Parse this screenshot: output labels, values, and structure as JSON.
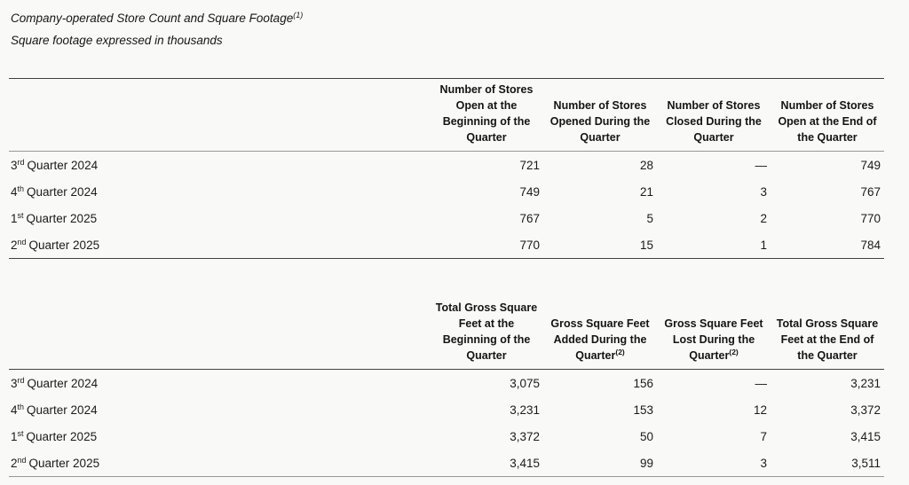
{
  "intro": {
    "title_text": "Company-operated Store Count and Square Footage",
    "title_sup": "(1)",
    "subtitle": "Square footage expressed in thousands"
  },
  "store_table": {
    "headers": [
      {
        "lines": [
          "Number of Stores",
          "Open at the",
          "Beginning of the",
          "Quarter"
        ],
        "sup": ""
      },
      {
        "lines": [
          "Number of Stores",
          "Opened During the",
          "Quarter"
        ],
        "sup": ""
      },
      {
        "lines": [
          "Number of Stores",
          "Closed During the",
          "Quarter"
        ],
        "sup": ""
      },
      {
        "lines": [
          "Number of Stores",
          "Open at the End of",
          "the Quarter"
        ],
        "sup": ""
      }
    ],
    "rows": [
      {
        "label": {
          "num": "3",
          "ord": "rd",
          "rest": "Quarter 2024"
        },
        "values": [
          "721",
          "28",
          "—",
          "749"
        ]
      },
      {
        "label": {
          "num": "4",
          "ord": "th",
          "rest": "Quarter 2024"
        },
        "values": [
          "749",
          "21",
          "3",
          "767"
        ]
      },
      {
        "label": {
          "num": "1",
          "ord": "st",
          "rest": "Quarter 2025"
        },
        "values": [
          "767",
          "5",
          "2",
          "770"
        ]
      },
      {
        "label": {
          "num": "2",
          "ord": "nd",
          "rest": "Quarter 2025"
        },
        "values": [
          "770",
          "15",
          "1",
          "784"
        ]
      }
    ]
  },
  "sqft_table": {
    "headers": [
      {
        "lines": [
          "Total Gross Square",
          "Feet at the",
          "Beginning of the",
          "Quarter"
        ],
        "sup": ""
      },
      {
        "lines": [
          "Gross Square Feet",
          "Added During the",
          "Quarter"
        ],
        "sup": "(2)"
      },
      {
        "lines": [
          "Gross Square Feet",
          "Lost During the",
          "Quarter"
        ],
        "sup": "(2)"
      },
      {
        "lines": [
          "Total Gross Square",
          "Feet at the End of",
          "the Quarter"
        ],
        "sup": ""
      }
    ],
    "rows": [
      {
        "label": {
          "num": "3",
          "ord": "rd",
          "rest": "Quarter 2024"
        },
        "values": [
          "3,075",
          "156",
          "—",
          "3,231"
        ]
      },
      {
        "label": {
          "num": "4",
          "ord": "th",
          "rest": "Quarter 2024"
        },
        "values": [
          "3,231",
          "153",
          "12",
          "3,372"
        ]
      },
      {
        "label": {
          "num": "1",
          "ord": "st",
          "rest": "Quarter 2025"
        },
        "values": [
          "3,372",
          "50",
          "7",
          "3,415"
        ]
      },
      {
        "label": {
          "num": "2",
          "ord": "nd",
          "rest": "Quarter 2025"
        },
        "values": [
          "3,415",
          "99",
          "3",
          "3,511"
        ]
      }
    ]
  }
}
